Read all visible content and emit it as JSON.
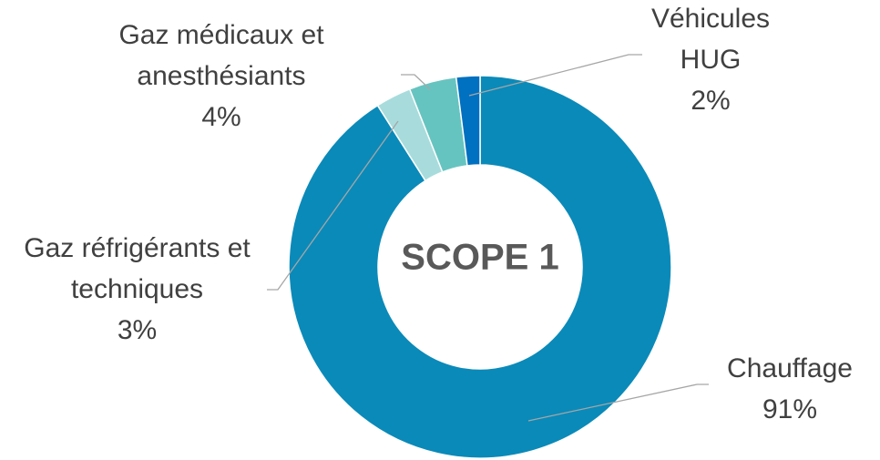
{
  "chart_data": {
    "type": "donut",
    "title": "SCOPE 1",
    "categories": [
      "Chauffage",
      "Gaz réfrigérants et techniques",
      "Gaz médicaux et anesthésiants",
      "Véhicules HUG"
    ],
    "values": [
      91,
      3,
      4,
      2
    ],
    "value_labels": [
      "91%",
      "3%",
      "4%",
      "2%"
    ],
    "colors": [
      "#0a8ab9",
      "#a8dcdc",
      "#66c4c0",
      "#0070c0"
    ]
  }
}
